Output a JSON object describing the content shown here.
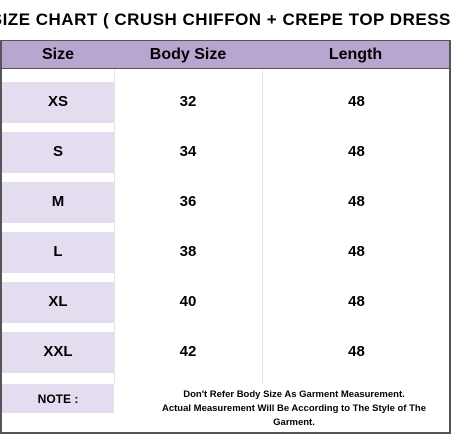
{
  "title": "SIZE CHART  ( CRUSH CHIFFON + CREPE TOP DRESS )",
  "headers": {
    "size": "Size",
    "body": "Body Size",
    "length": "Length"
  },
  "rows": [
    {
      "size": "XS",
      "body": "32",
      "length": "48"
    },
    {
      "size": "S",
      "body": "34",
      "length": "48"
    },
    {
      "size": "M",
      "body": "36",
      "length": "48"
    },
    {
      "size": "L",
      "body": "38",
      "length": "48"
    },
    {
      "size": "XL",
      "body": "40",
      "length": "48"
    },
    {
      "size": "XXL",
      "body": "42",
      "length": "48"
    }
  ],
  "note": {
    "label": "NOTE  :",
    "line1": "Don't Refer Body Size As Garment Measurement.",
    "line2": "Actual Measurement Will Be According to The Style of The Garment."
  },
  "colors": {
    "header_bg": "#b7a6cf",
    "size_cell_bg": "#e3ddef"
  }
}
